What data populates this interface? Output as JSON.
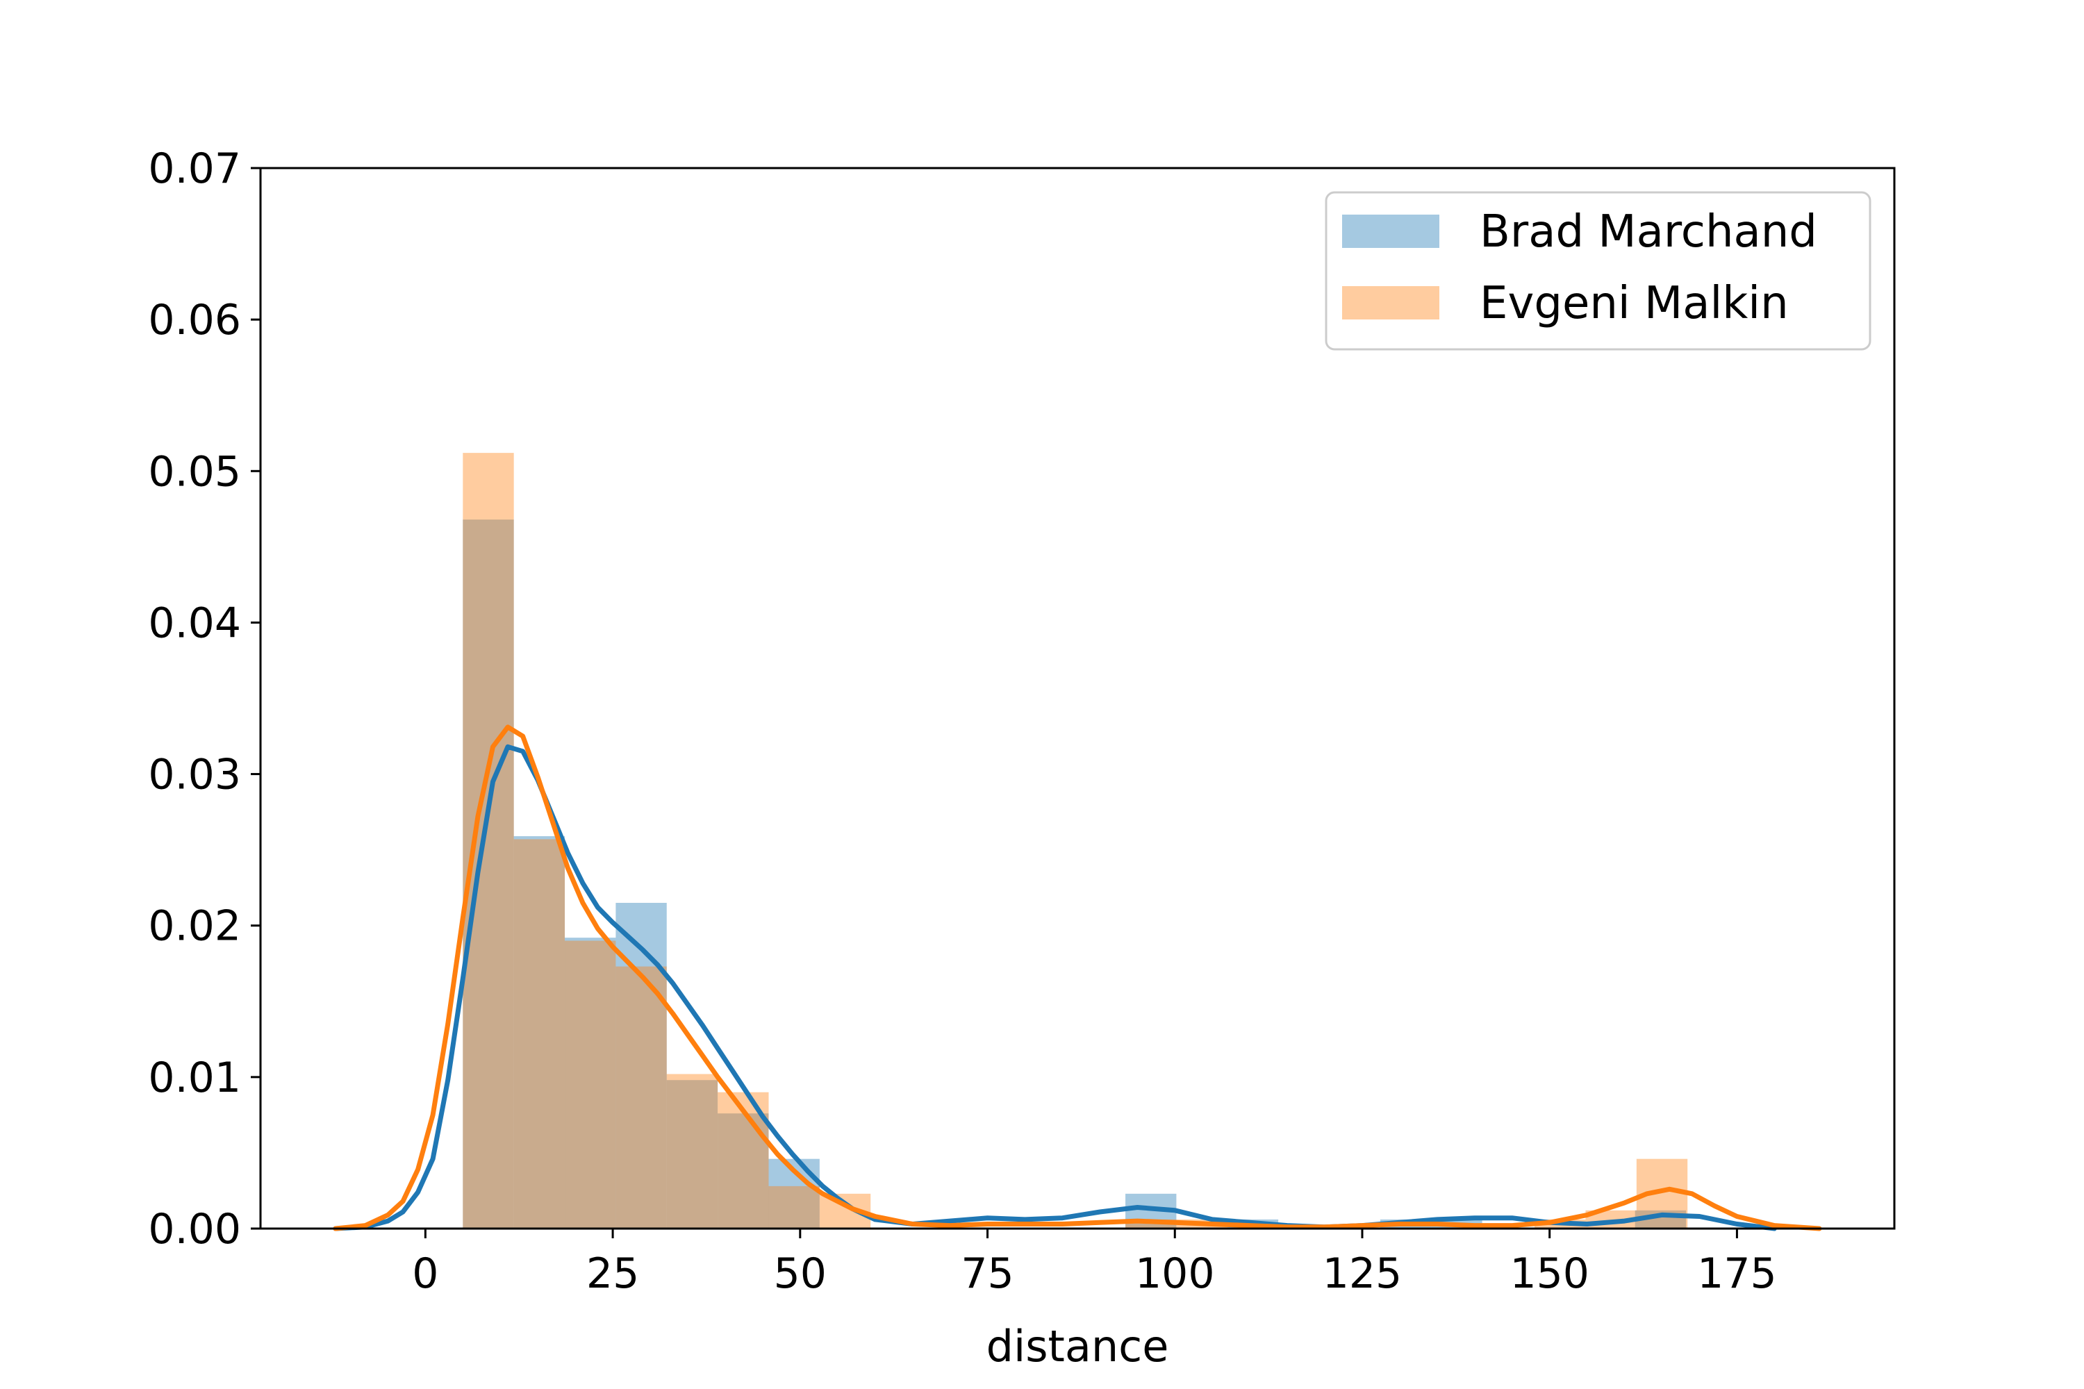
{
  "chart_data": {
    "type": "bar",
    "xlabel": "distance",
    "ylabel": "",
    "title": "",
    "xlim": [
      -22,
      196
    ],
    "ylim": [
      0,
      0.07
    ],
    "xticks": [
      0,
      25,
      50,
      75,
      100,
      125,
      150,
      175
    ],
    "yticks": [
      0.0,
      0.01,
      0.02,
      0.03,
      0.04,
      0.05,
      0.06,
      0.07
    ],
    "xtick_labels": [
      "0",
      "25",
      "50",
      "75",
      "100",
      "125",
      "150",
      "175"
    ],
    "ytick_labels": [
      "0.00",
      "0.01",
      "0.02",
      "0.03",
      "0.04",
      "0.05",
      "0.06",
      "0.07"
    ],
    "grid": false,
    "legend_position": "top-right",
    "series": [
      {
        "name": "Brad Marchand",
        "color": "#1f77b4",
        "hist_bins": [
          {
            "x0": 5,
            "x1": 11.8,
            "value": 0.0468
          },
          {
            "x0": 11.8,
            "x1": 18.6,
            "value": 0.0259
          },
          {
            "x0": 18.6,
            "x1": 25.4,
            "value": 0.0192
          },
          {
            "x0": 25.4,
            "x1": 32.2,
            "value": 0.0215
          },
          {
            "x0": 32.2,
            "x1": 39.0,
            "value": 0.0098
          },
          {
            "x0": 39.0,
            "x1": 45.8,
            "value": 0.0076
          },
          {
            "x0": 45.8,
            "x1": 52.6,
            "value": 0.0046
          },
          {
            "x0": 52.6,
            "x1": 59.4,
            "value": 0.0
          },
          {
            "x0": 93.4,
            "x1": 100.2,
            "value": 0.0023
          },
          {
            "x0": 107.0,
            "x1": 113.8,
            "value": 0.0006
          },
          {
            "x0": 127.4,
            "x1": 134.2,
            "value": 0.0006
          },
          {
            "x0": 134.2,
            "x1": 141.0,
            "value": 0.0006
          },
          {
            "x0": 161.4,
            "x1": 168.2,
            "value": 0.0012
          }
        ],
        "kde": {
          "x": [
            -12,
            -8,
            -5,
            -3,
            -1,
            1,
            3,
            5,
            7,
            9,
            11,
            13,
            15,
            17,
            19,
            21,
            23,
            25,
            27,
            29,
            31,
            33,
            35,
            37,
            39,
            41,
            43,
            45,
            47,
            49,
            51,
            53,
            55,
            57,
            60,
            65,
            70,
            75,
            80,
            85,
            90,
            95,
            100,
            105,
            110,
            115,
            120,
            125,
            130,
            135,
            140,
            145,
            150,
            155,
            160,
            165,
            170,
            175,
            180
          ],
          "y": [
            0.0,
            0.0001,
            0.0005,
            0.0011,
            0.0024,
            0.0046,
            0.0098,
            0.0165,
            0.0235,
            0.0295,
            0.0318,
            0.0315,
            0.0296,
            0.0272,
            0.0248,
            0.0228,
            0.0212,
            0.0202,
            0.0193,
            0.0184,
            0.0174,
            0.0162,
            0.0148,
            0.0134,
            0.0119,
            0.0104,
            0.0089,
            0.0074,
            0.0061,
            0.0049,
            0.0038,
            0.0028,
            0.002,
            0.0013,
            0.0006,
            0.0003,
            0.0005,
            0.0007,
            0.0006,
            0.0007,
            0.0011,
            0.0014,
            0.0012,
            0.0006,
            0.0004,
            0.0002,
            0.0001,
            0.0002,
            0.0004,
            0.0006,
            0.0007,
            0.0007,
            0.0004,
            0.0003,
            0.0005,
            0.0009,
            0.0008,
            0.0003,
            0.0
          ]
        }
      },
      {
        "name": "Evgeni Malkin",
        "color": "#ff7f0e",
        "hist_bins": [
          {
            "x0": 5,
            "x1": 11.8,
            "value": 0.0512
          },
          {
            "x0": 11.8,
            "x1": 18.6,
            "value": 0.0257
          },
          {
            "x0": 18.6,
            "x1": 25.4,
            "value": 0.019
          },
          {
            "x0": 25.4,
            "x1": 32.2,
            "value": 0.0173
          },
          {
            "x0": 32.2,
            "x1": 39.0,
            "value": 0.0102
          },
          {
            "x0": 39.0,
            "x1": 45.8,
            "value": 0.009
          },
          {
            "x0": 45.8,
            "x1": 52.6,
            "value": 0.0028
          },
          {
            "x0": 52.6,
            "x1": 59.4,
            "value": 0.0023
          },
          {
            "x0": 93.4,
            "x1": 100.2,
            "value": 0.0006
          },
          {
            "x0": 100.2,
            "x1": 107.0,
            "value": 0.0006
          },
          {
            "x0": 148.0,
            "x1": 154.8,
            "value": 0.0006
          },
          {
            "x0": 154.8,
            "x1": 161.6,
            "value": 0.0012
          },
          {
            "x0": 161.6,
            "x1": 168.4,
            "value": 0.0046
          }
        ],
        "kde": {
          "x": [
            -12,
            -8,
            -5,
            -3,
            -1,
            1,
            3,
            5,
            7,
            9,
            11,
            13,
            15,
            17,
            19,
            21,
            23,
            25,
            27,
            29,
            31,
            33,
            35,
            37,
            39,
            41,
            43,
            45,
            47,
            49,
            51,
            53,
            55,
            57,
            60,
            65,
            70,
            75,
            80,
            85,
            90,
            95,
            100,
            105,
            110,
            115,
            120,
            125,
            130,
            135,
            140,
            145,
            150,
            155,
            160,
            163,
            166,
            169,
            172,
            175,
            180,
            186
          ],
          "y": [
            0.0,
            0.0002,
            0.0009,
            0.0018,
            0.0039,
            0.0075,
            0.0135,
            0.0205,
            0.0272,
            0.0318,
            0.0331,
            0.0325,
            0.0298,
            0.0268,
            0.0238,
            0.0215,
            0.0198,
            0.0186,
            0.0176,
            0.0166,
            0.0155,
            0.0142,
            0.0128,
            0.0114,
            0.01,
            0.0087,
            0.0074,
            0.0061,
            0.0049,
            0.0039,
            0.003,
            0.0023,
            0.0018,
            0.0013,
            0.0008,
            0.0003,
            0.0002,
            0.0003,
            0.0003,
            0.0003,
            0.0004,
            0.0005,
            0.0004,
            0.0003,
            0.0002,
            0.0001,
            0.0001,
            0.0002,
            0.0003,
            0.0003,
            0.0002,
            0.0002,
            0.0004,
            0.0009,
            0.0017,
            0.0023,
            0.0026,
            0.0023,
            0.0015,
            0.0008,
            0.0002,
            0.0
          ]
        }
      }
    ]
  }
}
